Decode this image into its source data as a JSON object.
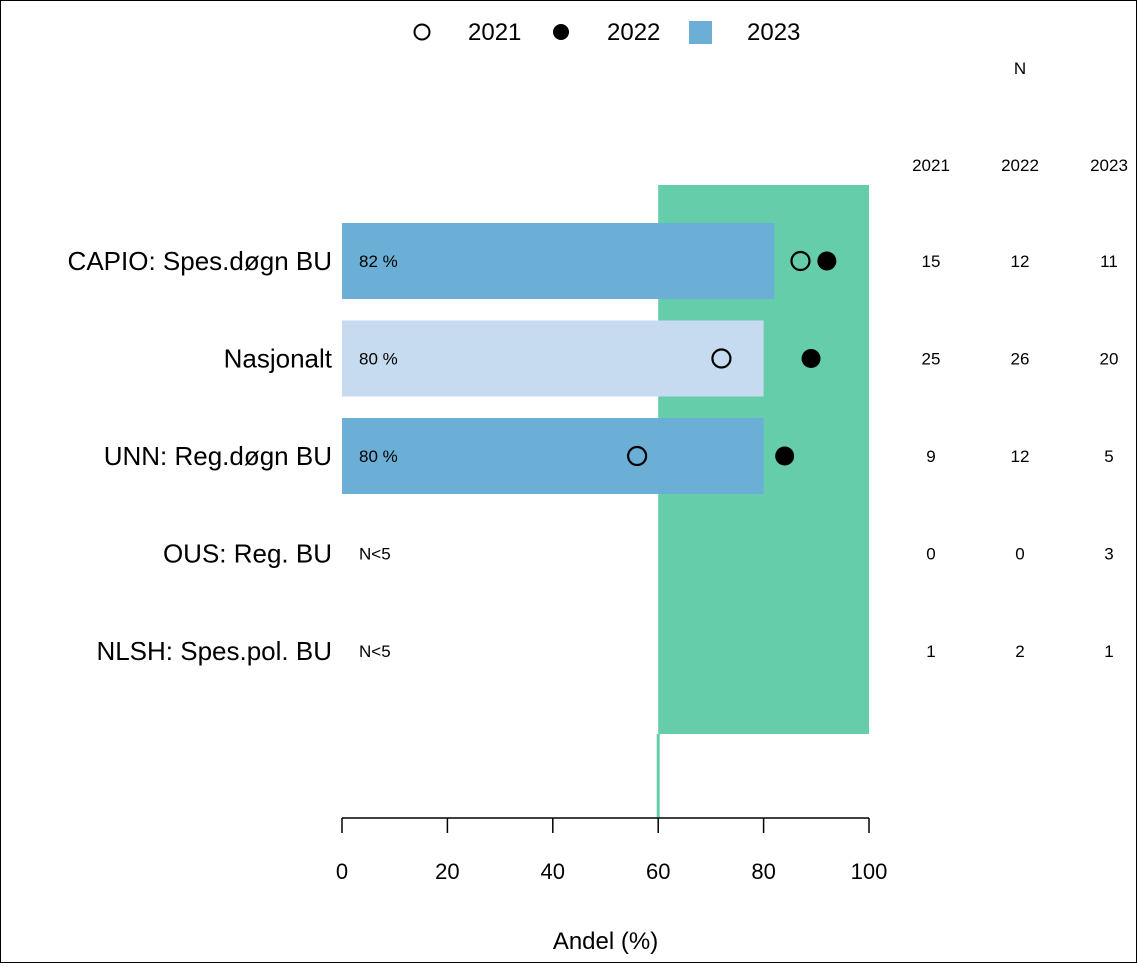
{
  "chart_data": {
    "type": "bar",
    "categories": [
      "CAPIO: Spes.døgn BU",
      "Nasjonalt",
      "UNN: Reg.døgn BU",
      "OUS: Reg. BU",
      "NLSH: Spes.pol. BU"
    ],
    "series": [
      {
        "name": "2023",
        "type": "bar",
        "values": [
          82,
          80,
          80,
          null,
          null
        ],
        "labels": [
          "82 %",
          "80 %",
          "80 %",
          "N<5",
          "N<5"
        ]
      },
      {
        "name": "2021",
        "type": "point",
        "marker": "open-circle",
        "values": [
          87,
          72,
          56,
          null,
          null
        ]
      },
      {
        "name": "2022",
        "type": "point",
        "marker": "filled-circle",
        "values": [
          92,
          89,
          84,
          null,
          null
        ]
      }
    ],
    "highlight_category": "Nasjonalt",
    "target_band": [
      60,
      100
    ],
    "target_line": 60,
    "xlabel": "Andel (%)",
    "xlim": [
      0,
      100
    ],
    "xticks": [
      0,
      20,
      40,
      60,
      80,
      100
    ],
    "legend": {
      "position": "top",
      "entries": [
        "2021",
        "2022",
        "2023"
      ]
    },
    "n_table": {
      "header": "N",
      "years": [
        "2021",
        "2022",
        "2023"
      ],
      "rows": [
        [
          "15",
          "12",
          "11"
        ],
        [
          "25",
          "26",
          "20"
        ],
        [
          "9",
          "12",
          "5"
        ],
        [
          "0",
          "0",
          "3"
        ],
        [
          "1",
          "2",
          "1"
        ]
      ]
    },
    "colors": {
      "bar": "#6baed6",
      "bar_highlight": "#c6dbef",
      "target_band": "#66cdaa",
      "points": "#000000"
    },
    "grid": false
  }
}
